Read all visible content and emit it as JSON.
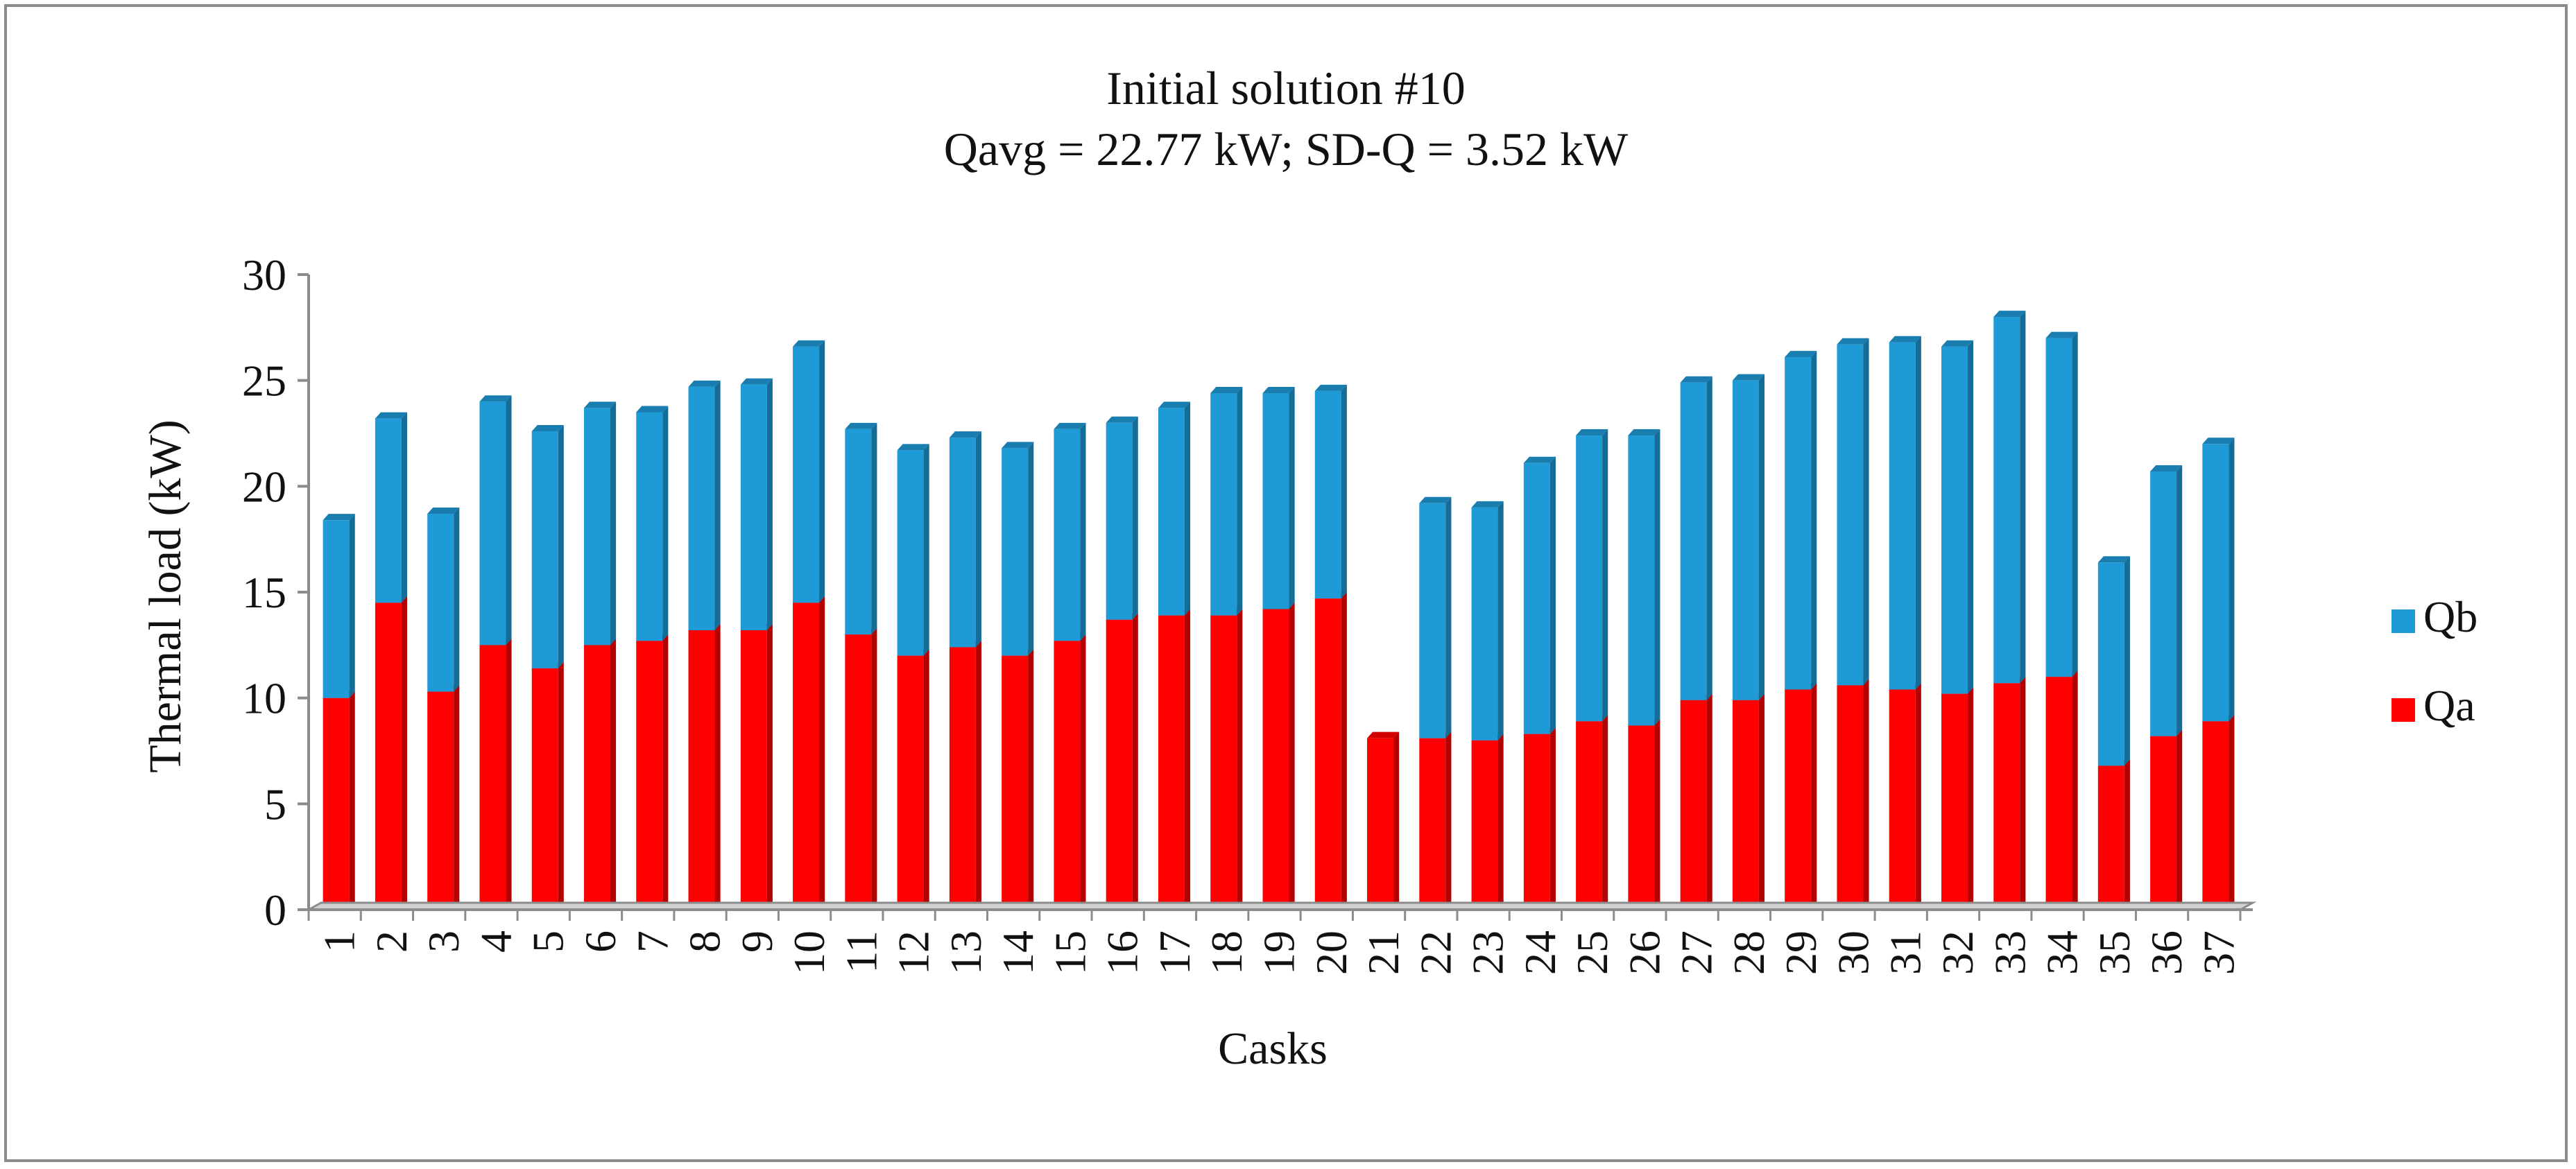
{
  "chart_data": {
    "type": "bar",
    "stacked": true,
    "title": "Initial solution #10",
    "subtitle": "Qavg = 22.77 kW; SD-Q = 3.52 kW",
    "xlabel": "Casks",
    "ylabel": "Thermal load (kW)",
    "ylim": [
      0,
      30
    ],
    "yticks": [
      0,
      5,
      10,
      15,
      20,
      25,
      30
    ],
    "grid": false,
    "legend_position": "right",
    "categories": [
      "1",
      "2",
      "3",
      "4",
      "5",
      "6",
      "7",
      "8",
      "9",
      "10",
      "11",
      "12",
      "13",
      "14",
      "15",
      "16",
      "17",
      "18",
      "19",
      "20",
      "21",
      "22",
      "23",
      "24",
      "25",
      "26",
      "27",
      "28",
      "29",
      "30",
      "31",
      "32",
      "33",
      "34",
      "35",
      "36",
      "37"
    ],
    "series": [
      {
        "name": "Qa",
        "color": "#ff0000",
        "values": [
          10.0,
          14.5,
          10.3,
          12.5,
          11.4,
          12.5,
          12.7,
          13.2,
          13.2,
          14.5,
          13.0,
          12.0,
          12.4,
          12.0,
          12.7,
          13.7,
          13.9,
          13.9,
          14.2,
          14.7,
          8.1,
          8.1,
          8.0,
          8.3,
          8.9,
          8.7,
          9.9,
          9.9,
          10.4,
          10.6,
          10.4,
          10.2,
          10.7,
          11.0,
          6.8,
          8.2,
          8.9
        ]
      },
      {
        "name": "Qb",
        "color": "#1e9ad6",
        "values": [
          8.4,
          8.7,
          8.4,
          11.5,
          11.2,
          11.2,
          10.8,
          11.5,
          11.6,
          12.1,
          9.7,
          9.7,
          9.9,
          9.8,
          10.0,
          9.3,
          9.8,
          10.5,
          10.2,
          9.8,
          0.0,
          11.1,
          11.0,
          12.8,
          13.5,
          13.7,
          15.0,
          15.1,
          15.7,
          16.1,
          16.4,
          16.4,
          17.3,
          16.0,
          9.6,
          12.5,
          13.1
        ]
      }
    ],
    "legend": [
      {
        "name": "Qb",
        "color": "#1e9ad6"
      },
      {
        "name": "Qa",
        "color": "#ff0000"
      }
    ]
  }
}
